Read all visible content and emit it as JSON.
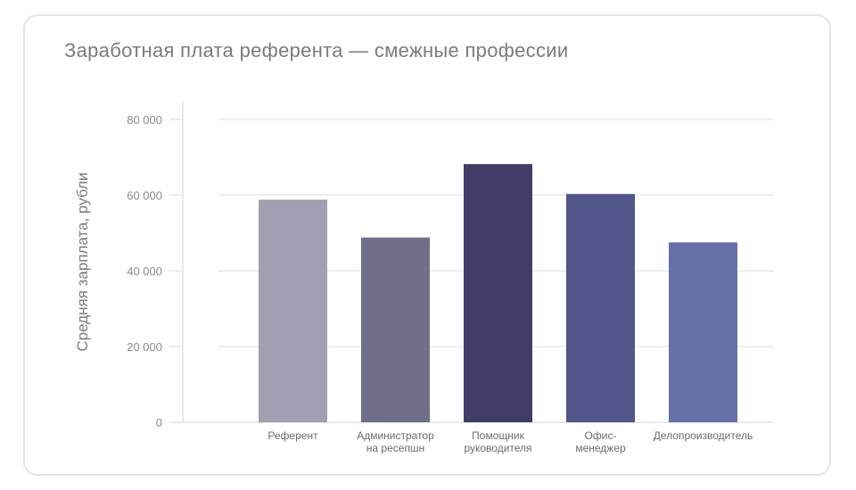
{
  "chart_data": {
    "type": "bar",
    "title": "Заработная плата референта — смежные профессии",
    "xlabel": "",
    "ylabel": "Средняя зарплата, рубли",
    "ylim": [
      0,
      80000
    ],
    "yticks": [
      0,
      20000,
      40000,
      60000,
      80000
    ],
    "ytick_labels": [
      "0",
      "20 000",
      "40 000",
      "60 000",
      "80 000"
    ],
    "grid": true,
    "categories": [
      [
        "Референт"
      ],
      [
        "Администратор",
        "на ресепшн"
      ],
      [
        "Помощник",
        "руководителя"
      ],
      [
        "Офис-",
        "менеджер"
      ],
      [
        "Делопроизводитель"
      ]
    ],
    "values": [
      58800,
      48800,
      68200,
      60300,
      47500
    ],
    "colors": [
      "#a0a0b2",
      "#6f6f8a",
      "#403e66",
      "#525589",
      "#6870aa"
    ]
  }
}
